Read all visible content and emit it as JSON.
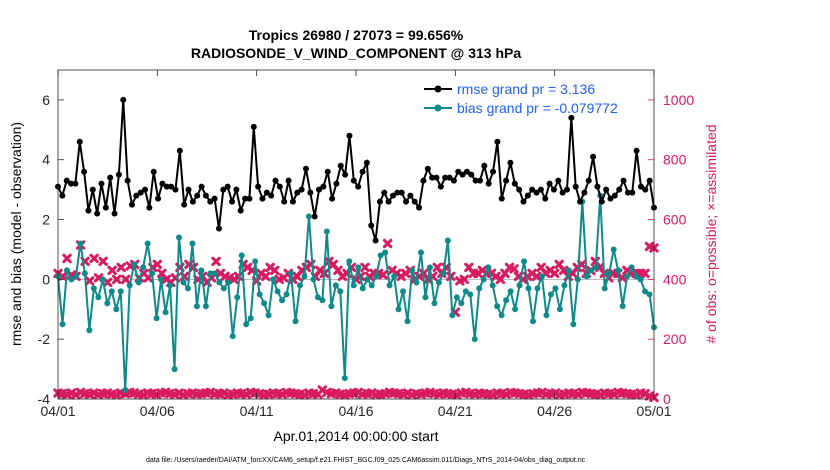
{
  "colors": {
    "rmse": "#000000",
    "bias": "#0e8a8a",
    "obs": "#d81b60",
    "legend_text": "#1f5fff",
    "zero_line": "#b0b0b0"
  },
  "chart_data": {
    "type": "line",
    "title": "Tropics 26980 / 27073 = 99.656%",
    "subtitle": "RADIOSONDE_V_WIND_COMPONENT @ 313 hPa",
    "xlabel": "Apr.01,2014 00:00:00 start",
    "ylabel_left": "rmse and bias (model - observation)",
    "ylabel_right": "# of obs: o=possible; ×=assimilated",
    "footnote": "data file: /Users/raeder/DAI/ATM_forcXX/CAM6_setup/f.e21.FHIST_BGC.f09_025.CAM6assim.011/Diags_NTrS_2014-04/obs_diag_output.nc",
    "x_ticks": [
      "04/01",
      "04/06",
      "04/11",
      "04/16",
      "04/21",
      "04/26",
      "05/01"
    ],
    "y_left_ticks": [
      "-4",
      "-2",
      "0",
      "2",
      "4",
      "6"
    ],
    "y_right_ticks": [
      "0",
      "200",
      "400",
      "600",
      "800",
      "1000"
    ],
    "xlim_days": [
      0,
      30
    ],
    "ylim_left": [
      -4,
      7
    ],
    "ylim_right": [
      0,
      1100
    ],
    "series": [
      {
        "name": "rmse grand pr = 3.136",
        "axis": "left",
        "values": [
          3.1,
          2.8,
          3.3,
          3.2,
          3.2,
          4.6,
          3.6,
          2.3,
          3.0,
          2.2,
          3.2,
          2.4,
          3.4,
          2.2,
          3.5,
          6.0,
          3.3,
          2.5,
          2.8,
          2.9,
          3.0,
          2.4,
          3.6,
          2.7,
          3.2,
          3.1,
          3.1,
          3.0,
          4.3,
          2.5,
          3.0,
          2.6,
          2.8,
          3.1,
          2.8,
          2.6,
          2.7,
          1.7,
          3.0,
          3.1,
          2.6,
          3.0,
          2.3,
          2.7,
          2.7,
          5.1,
          3.1,
          2.7,
          2.9,
          2.8,
          3.3,
          3.1,
          2.6,
          3.3,
          2.6,
          2.9,
          3.0,
          3.7,
          2.9,
          2.1,
          3.0,
          3.1,
          3.6,
          2.7,
          3.2,
          3.8,
          3.5,
          4.8,
          3.3,
          3.1,
          3.6,
          3.9,
          1.8,
          1.3,
          2.6,
          2.9,
          2.6,
          2.8,
          2.9,
          2.9,
          2.6,
          2.8,
          2.6,
          2.4,
          3.3,
          3.7,
          3.4,
          3.4,
          3.1,
          3.4,
          3.4,
          3.3,
          3.6,
          3.5,
          3.6,
          3.5,
          3.3,
          3.3,
          3.8,
          3.2,
          3.6,
          4.6,
          2.7,
          3.3,
          3.9,
          3.2,
          3.0,
          2.6,
          2.8,
          3.0,
          2.9,
          3.0,
          2.7,
          3.2,
          3.0,
          3.3,
          2.9,
          3.0,
          5.4,
          3.1,
          2.6,
          2.9,
          3.3,
          4.1,
          3.1,
          2.6,
          3.0,
          2.7,
          2.8,
          3.0,
          3.3,
          2.9,
          2.9,
          4.3,
          3.1,
          3.0,
          3.3,
          2.4
        ]
      },
      {
        "name": "bias grand pr = -0.079772",
        "axis": "left",
        "values": [
          0.1,
          -1.5,
          0.3,
          0.0,
          0.1,
          1.2,
          0.2,
          -1.7,
          -0.3,
          -0.6,
          0.0,
          -0.8,
          -0.4,
          -1.0,
          -0.4,
          -3.7,
          -0.2,
          0.5,
          -0.1,
          0.4,
          1.2,
          0.2,
          -1.3,
          0.0,
          -1.1,
          -0.2,
          -3.0,
          1.4,
          -0.1,
          -0.3,
          1.2,
          -0.9,
          0.3,
          -0.9,
          0.2,
          0.2,
          -0.1,
          -0.3,
          -0.1,
          -1.9,
          -0.6,
          0.8,
          -1.5,
          -1.3,
          0.6,
          -0.5,
          -0.8,
          -1.2,
          0.0,
          -0.4,
          -0.7,
          -0.5,
          0.2,
          -1.4,
          -0.2,
          0.1,
          2.1,
          0.0,
          -0.6,
          -0.7,
          1.6,
          -0.9,
          -0.2,
          -0.4,
          -3.3,
          0.6,
          -0.2,
          0.4,
          -0.3,
          0.0,
          -0.2,
          0.1,
          0.8,
          0.9,
          -0.2,
          0.1,
          -1.0,
          -0.4,
          -1.4,
          0.3,
          -0.1,
          0.9,
          -0.6,
          0.4,
          -0.8,
          -0.1,
          0.2,
          1.3,
          -1.2,
          -0.6,
          -0.8,
          -0.4,
          -0.5,
          -2.0,
          -0.3,
          0.0,
          0.4,
          -0.2,
          -0.9,
          -1.2,
          -0.7,
          -0.4,
          -1.0,
          -0.2,
          0.6,
          -0.3,
          -1.4,
          -0.3,
          0.1,
          -1.2,
          -0.5,
          -0.3,
          -1.0,
          -0.2,
          0.3,
          -1.5,
          0.0,
          2.6,
          0.1,
          0.3,
          0.4,
          2.8,
          -0.3,
          0.2,
          1.0,
          0.3,
          -0.9,
          0.1,
          0.4,
          0.1,
          0.0,
          -0.4,
          -0.5,
          -1.6
        ]
      },
      {
        "name": "possible",
        "axis": "right",
        "values": [
          20,
          18,
          16,
          20,
          14,
          22,
          18,
          16,
          20,
          15,
          18,
          20,
          16,
          14,
          20,
          18,
          22,
          20,
          16,
          14,
          20,
          18,
          16,
          20,
          22,
          18,
          16,
          20,
          14,
          18,
          20,
          16,
          18,
          20,
          22,
          16,
          18,
          20,
          14,
          16,
          20,
          18,
          16,
          22,
          20,
          18,
          14,
          16,
          20,
          18,
          16,
          22,
          20,
          18,
          16,
          14,
          20,
          18,
          16,
          30,
          22,
          18,
          20,
          16,
          14,
          18,
          20,
          22,
          16,
          18,
          20,
          14,
          16,
          18,
          22,
          20,
          18,
          16,
          20,
          14,
          18,
          16,
          20,
          22,
          18,
          16,
          20,
          18,
          16,
          14,
          20,
          22,
          18,
          16,
          20,
          18,
          16,
          14,
          20,
          18,
          16,
          22,
          20,
          18,
          16,
          14,
          18,
          20,
          22,
          16,
          18,
          20,
          14,
          16,
          20,
          18,
          16,
          22,
          20,
          18,
          16,
          14,
          20,
          18,
          16,
          22,
          20,
          18,
          16,
          14,
          20,
          18,
          10,
          5
        ]
      },
      {
        "name": "assimilated",
        "axis": "right",
        "values": [
          420,
          410,
          470,
          415,
          410,
          515,
          460,
          395,
          470,
          405,
          460,
          390,
          430,
          400,
          440,
          400,
          445,
          450,
          405,
          420,
          405,
          440,
          450,
          420,
          400,
          390,
          405,
          440,
          410,
          450,
          440,
          400,
          410,
          390,
          405,
          460,
          420,
          410,
          405,
          400,
          410,
          450,
          440,
          430,
          395,
          420,
          410,
          440,
          430,
          400,
          405,
          420,
          400,
          410,
          430,
          440,
          450,
          410,
          430,
          420,
          460,
          450,
          430,
          410,
          420,
          440,
          400,
          410,
          440,
          410,
          420,
          420,
          415,
          520,
          430,
          420,
          410,
          420,
          430,
          400,
          410,
          420,
          400,
          410,
          440,
          420,
          440,
          410,
          290,
          395,
          400,
          440,
          420,
          420,
          430,
          420,
          420,
          410,
          400,
          420,
          440,
          435,
          410,
          400,
          410,
          420,
          410,
          440,
          420,
          430,
          420,
          450,
          430,
          410,
          420,
          440,
          450,
          420,
          430,
          460,
          440,
          420,
          405,
          420,
          420,
          405,
          430,
          420,
          420,
          420,
          420,
          510,
          505
        ]
      }
    ]
  }
}
